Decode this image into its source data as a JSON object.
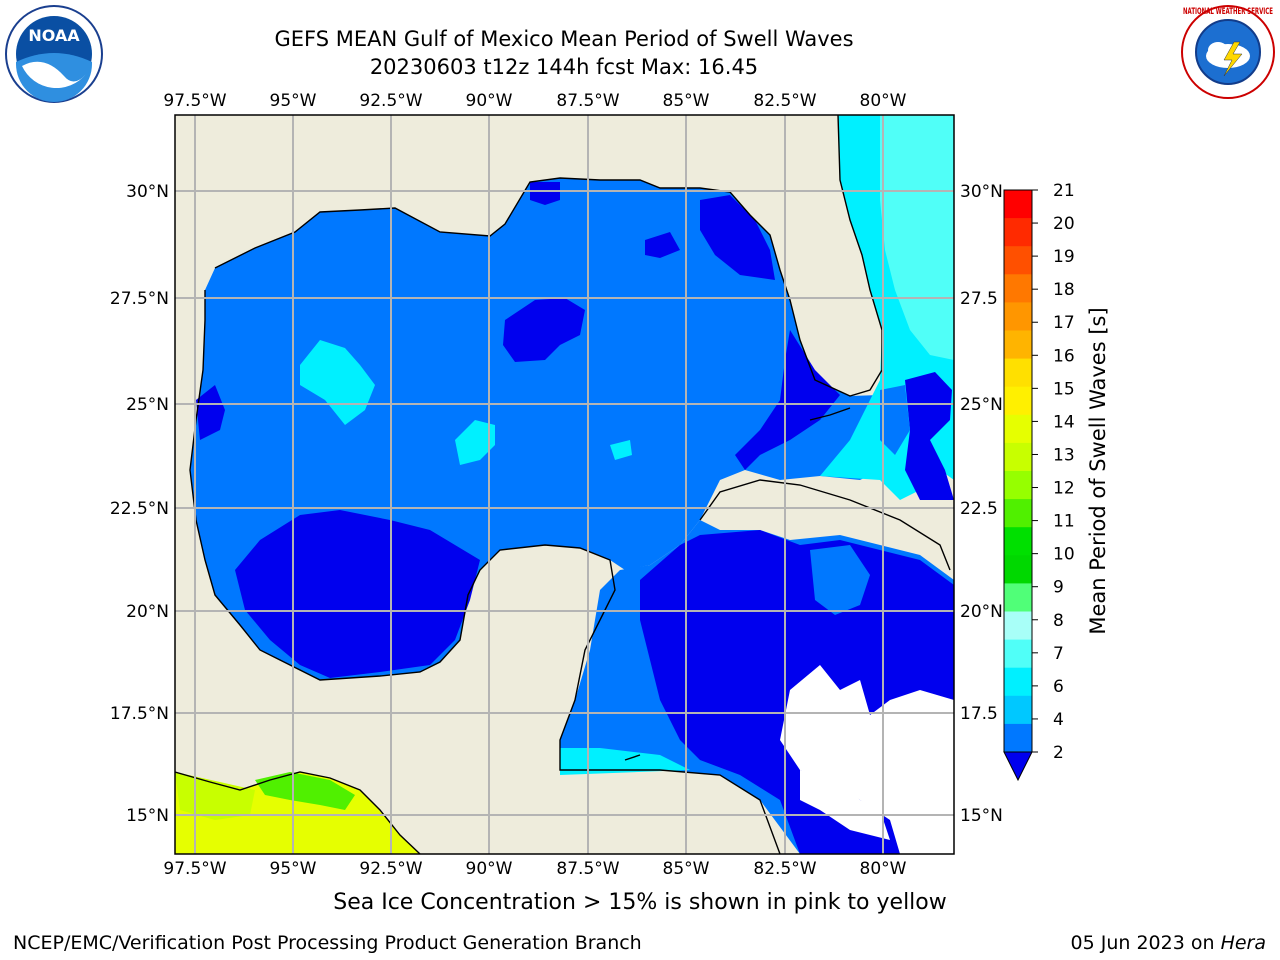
{
  "header": {
    "title_line1": "GEFS MEAN Gulf of Mexico Mean Period of Swell Waves",
    "title_line2": "20230603 t12z 144h fcst   Max: 16.45"
  },
  "map": {
    "lon_ticks": [
      "97.5°W",
      "95°W",
      "92.5°W",
      "90°W",
      "87.5°W",
      "85°W",
      "82.5°W",
      "80°W"
    ],
    "lat_ticks_left": [
      "30°N",
      "27.5°N",
      "25°N",
      "22.5°N",
      "20°N",
      "17.5°N",
      "15°N"
    ],
    "lat_ticks_right": [
      "30°N",
      "27.5",
      "25°N",
      "22.5",
      "20°N",
      "17.5",
      "15°N"
    ],
    "colors": {
      "land": "#eeecdc",
      "deep_blue": "#0000ee",
      "mid_blue": "#0078ff",
      "cyan": "#00f0ff",
      "light_cyan": "#50fff8",
      "pale_cyan": "#a8fff8",
      "grid": "#b4b4b4"
    }
  },
  "colorbar": {
    "label": "Mean Period of Swell Waves [s]",
    "ticks": [
      "21",
      "20",
      "19",
      "18",
      "17",
      "16",
      "15",
      "14",
      "13",
      "12",
      "11",
      "10",
      "9",
      "8",
      "7",
      "6",
      "4",
      "2"
    ],
    "colors_top_to_bottom": [
      "#ff0000",
      "#ff2a00",
      "#ff5000",
      "#ff7800",
      "#ff9600",
      "#ffb400",
      "#ffe000",
      "#fff000",
      "#e6ff00",
      "#c8ff00",
      "#96ff00",
      "#50f000",
      "#00e000",
      "#00d800",
      "#50ff78",
      "#a8fff8",
      "#50fff8",
      "#00f0ff",
      "#00c8ff",
      "#0078ff",
      "#0000ee"
    ]
  },
  "subtitle": "Sea Ice Concentration > 15% is shown in pink to yellow",
  "footer": {
    "left": "NCEP/EMC/Verification Post Processing Product Generation Branch",
    "right_date": "05 Jun 2023 on ",
    "right_host": "Hera"
  },
  "logos": {
    "noaa": "NOAA",
    "nws": "NATIONAL WEATHER SERVICE"
  }
}
